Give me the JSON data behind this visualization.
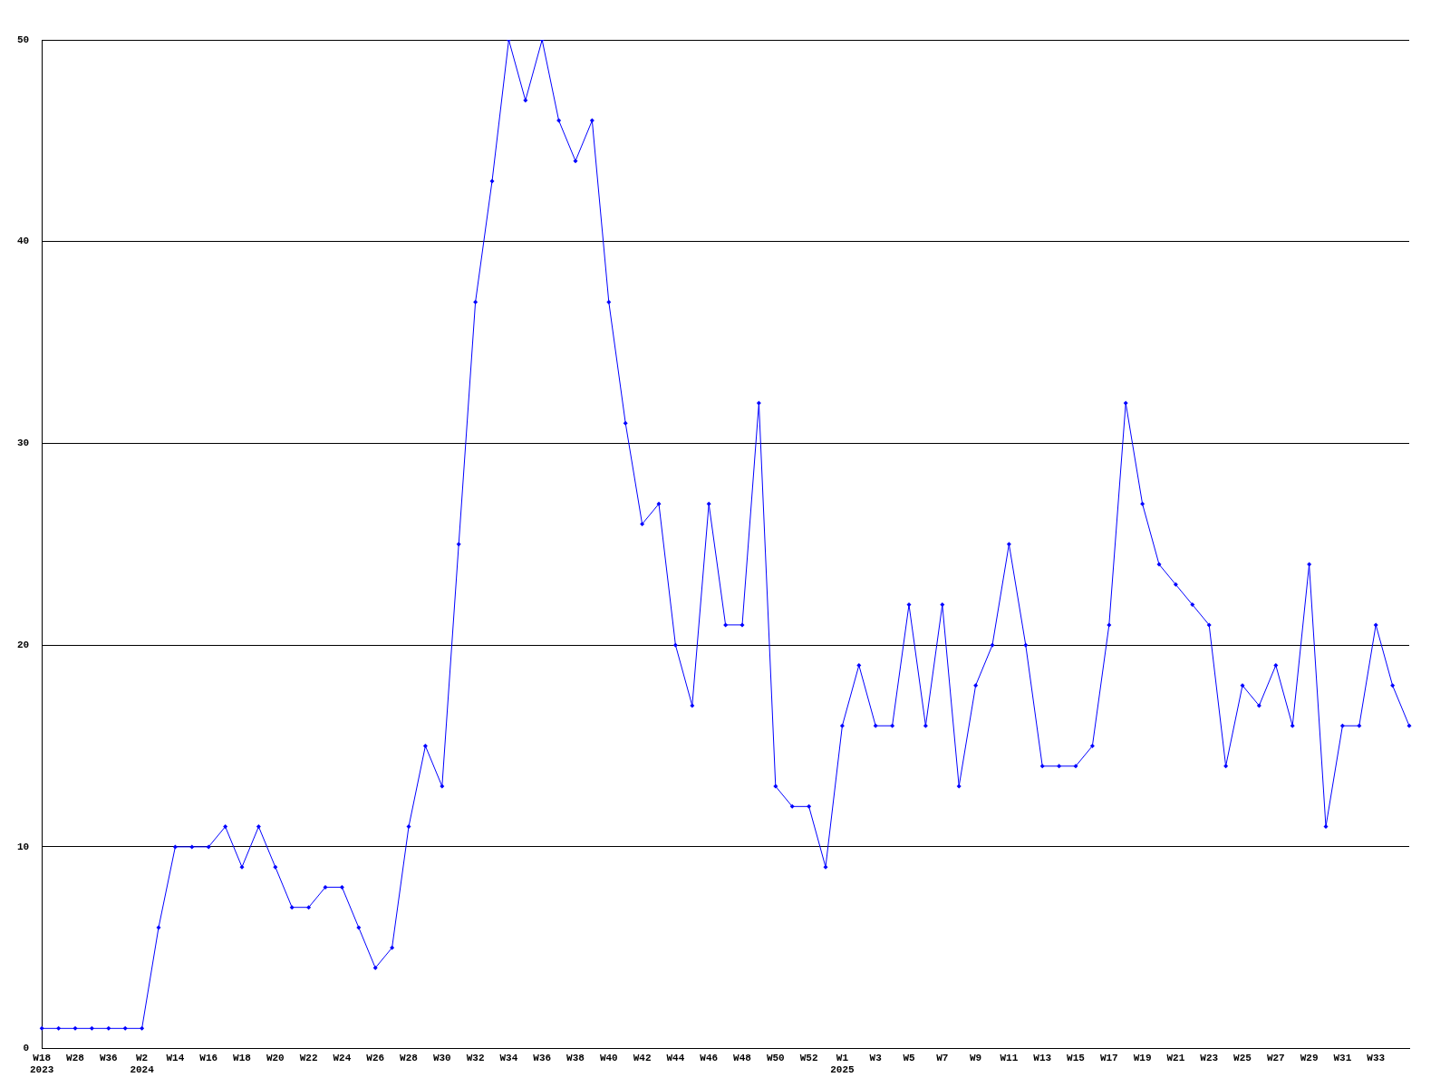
{
  "chart_data": {
    "type": "line",
    "categories": [
      "W18\n2023",
      null,
      "W28",
      null,
      "W36",
      null,
      "W2\n2024",
      null,
      "W14",
      null,
      "W16",
      null,
      "W18",
      null,
      "W20",
      null,
      "W22",
      null,
      "W24",
      null,
      "W26",
      null,
      "W28",
      null,
      "W30",
      null,
      "W32",
      null,
      "W34",
      null,
      "W36",
      null,
      "W38",
      null,
      "W40",
      null,
      "W42",
      null,
      "W44",
      null,
      "W46",
      null,
      "W48",
      null,
      "W50",
      null,
      "W52",
      null,
      "W1\n2025",
      null,
      "W3",
      null,
      "W5",
      null,
      "W7",
      null,
      "W9",
      null,
      "W11",
      null,
      "W13",
      null,
      "W15",
      null,
      "W17",
      null,
      "W19",
      null,
      "W21",
      null,
      "W23",
      null,
      "W25",
      null,
      "W27",
      null,
      "W29",
      null,
      "W31",
      null,
      "W33",
      null,
      null
    ],
    "series": [
      {
        "color": "#0000ff",
        "values": [
          1,
          1,
          1,
          1,
          1,
          1,
          1,
          6,
          10,
          10,
          10,
          11,
          9,
          11,
          9,
          7,
          7,
          8,
          8,
          6,
          4,
          5,
          11,
          15,
          13,
          25,
          37,
          43,
          50,
          47,
          50,
          46,
          44,
          46,
          37,
          31,
          26,
          27,
          20,
          17,
          27,
          21,
          21,
          32,
          13,
          12,
          12,
          9,
          16,
          19,
          16,
          16,
          22,
          16,
          22,
          13,
          18,
          20,
          25,
          20,
          14,
          14,
          14,
          15,
          21,
          32,
          27,
          24,
          23,
          22,
          21,
          14,
          18,
          17,
          19,
          16,
          24,
          11,
          16,
          16,
          21,
          18,
          16
        ]
      }
    ],
    "ylim": [
      0,
      50
    ],
    "yticks": [
      0,
      10,
      20,
      30,
      40,
      50
    ],
    "grid": "y",
    "legend": false,
    "marker": "diamond",
    "line_style": "solid"
  }
}
